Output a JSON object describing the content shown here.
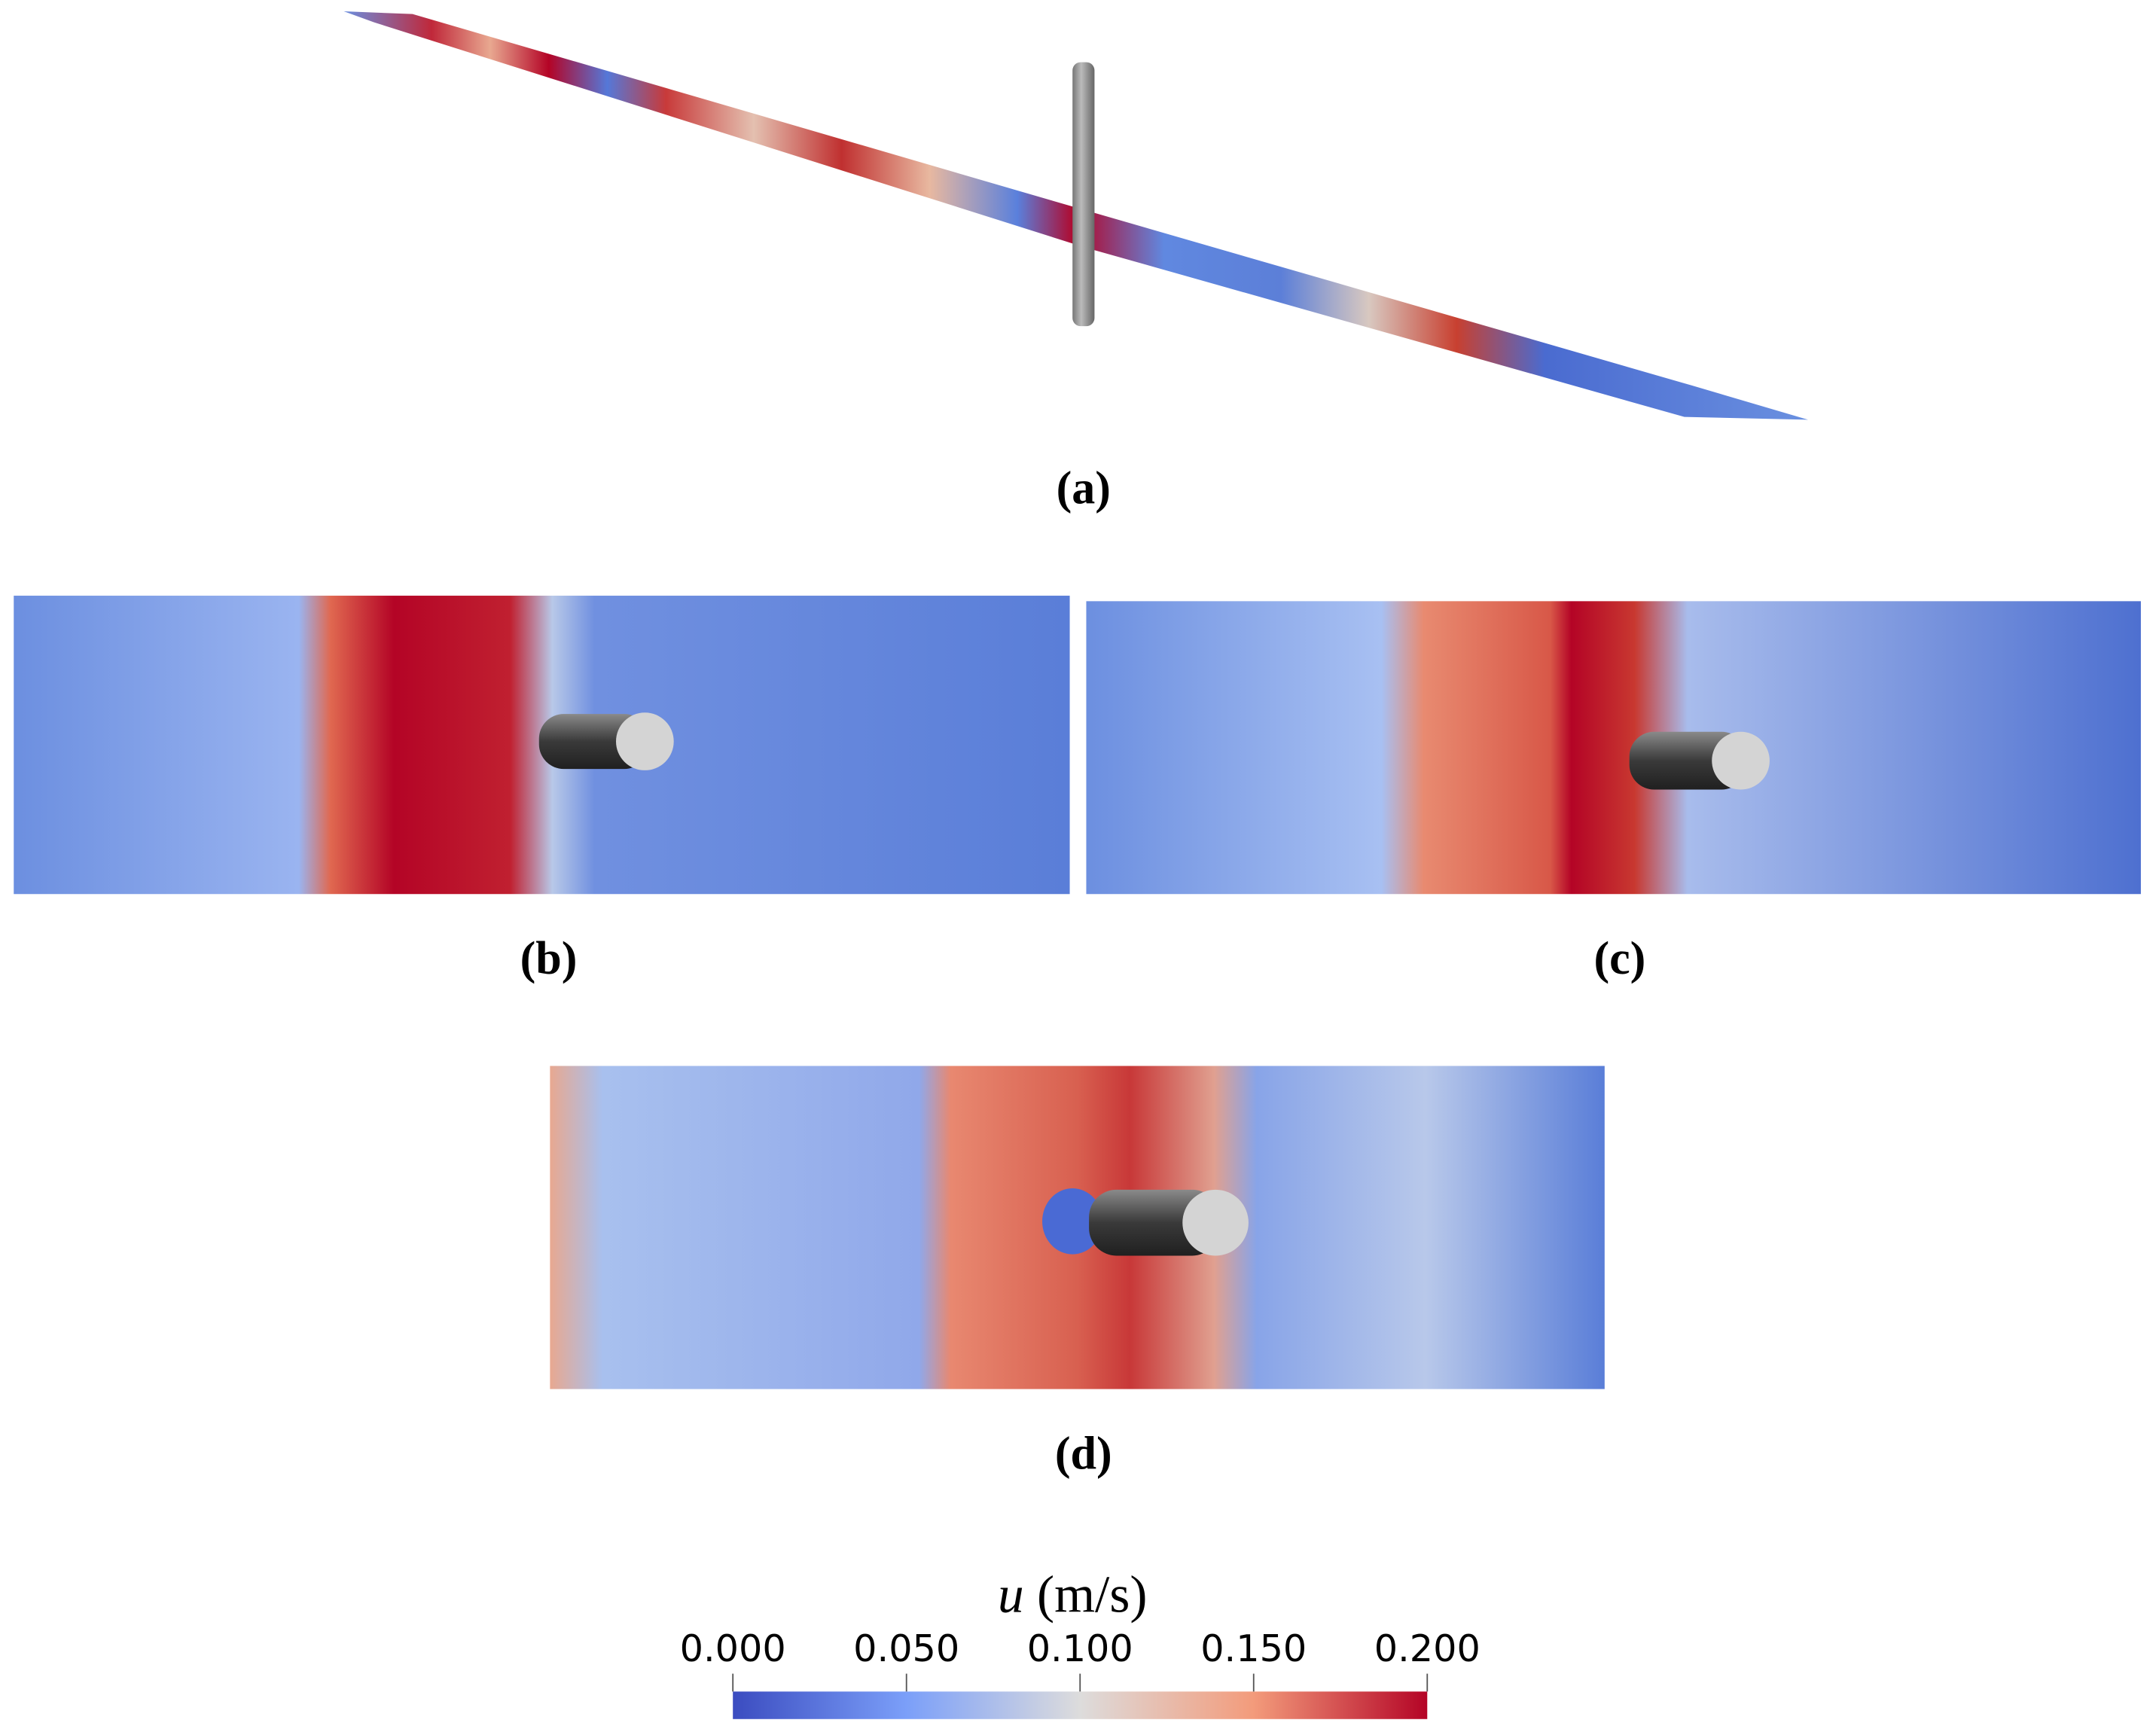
{
  "panels": [
    {
      "label": "(a)"
    },
    {
      "label": "(b)"
    },
    {
      "label": "(c)"
    },
    {
      "label": "(d)"
    }
  ],
  "colorbar": {
    "title_symbol": "u",
    "title_unit": "(m/s)",
    "lim": [
      0,
      0.2
    ],
    "ticks": [
      {
        "value": 0,
        "label": "0.000"
      },
      {
        "value": 0.05,
        "label": "0.050"
      },
      {
        "value": 0.1,
        "label": "0.100"
      },
      {
        "value": 0.15,
        "label": "0.150"
      },
      {
        "value": 0.2,
        "label": "0.200"
      }
    ]
  }
}
